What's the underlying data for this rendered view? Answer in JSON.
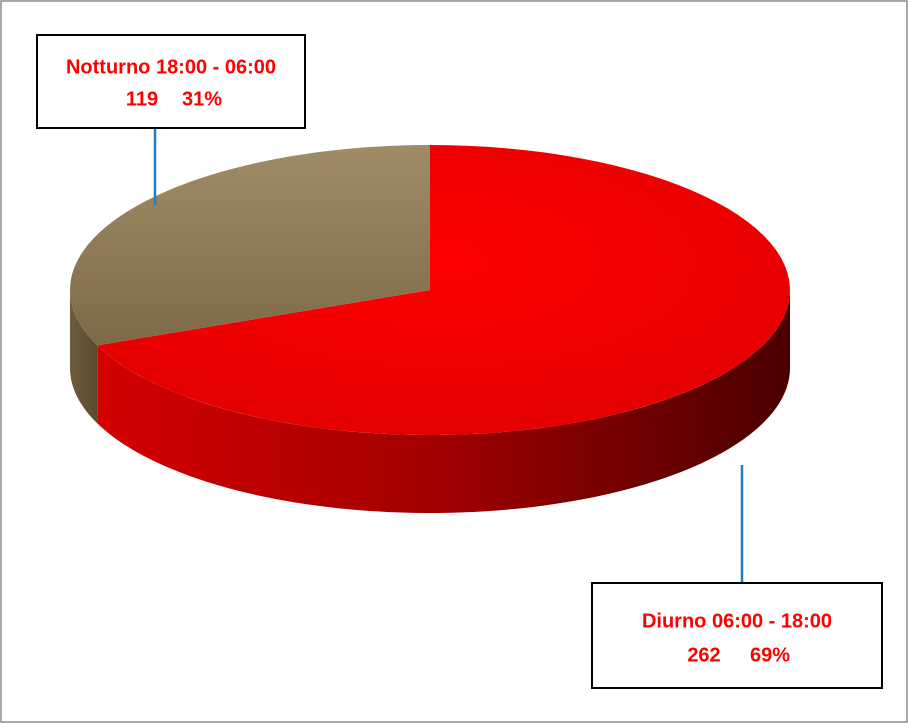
{
  "chart_data": {
    "type": "pie",
    "categories": [
      "Diurno 06:00 - 18:00",
      "Notturno 18:00 - 06:00"
    ],
    "values": [
      262,
      119
    ],
    "percent_labels": [
      "69%",
      "31%"
    ],
    "colors": [
      "#ff0000",
      "#9c8762"
    ]
  }
}
